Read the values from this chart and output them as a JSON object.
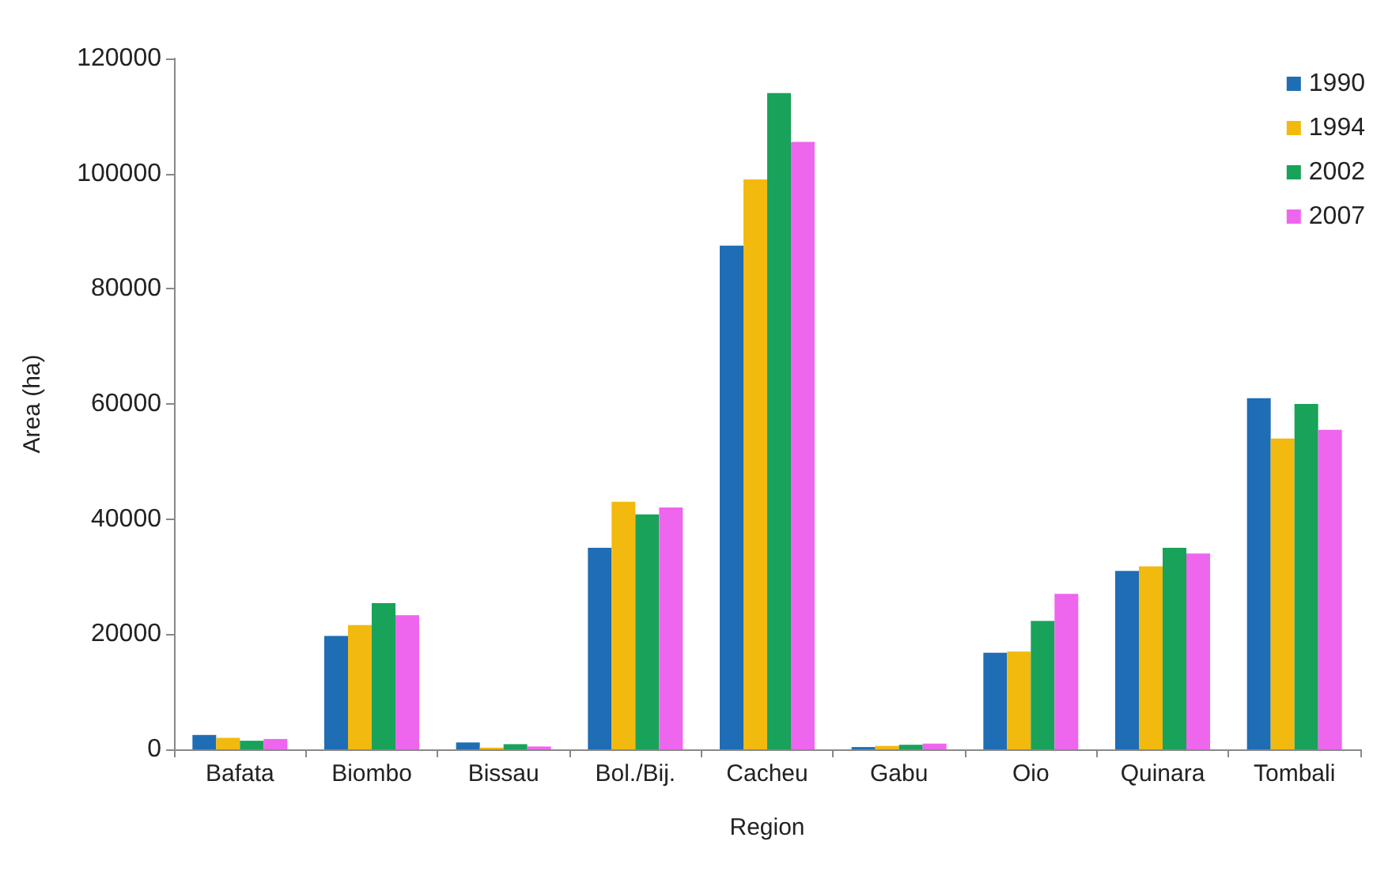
{
  "chart_data": {
    "type": "bar",
    "xlabel": "Region",
    "ylabel": "Area (ha)",
    "categories": [
      "Bafata",
      "Biombo",
      "Bissau",
      "Bol./Bij.",
      "Cacheu",
      "Gabu",
      "Oio",
      "Quinara",
      "Tombali"
    ],
    "series": [
      {
        "name": "1990",
        "color": "#1f6db5",
        "values": [
          2500,
          19700,
          1200,
          35000,
          87500,
          400,
          16800,
          31000,
          61000
        ]
      },
      {
        "name": "1994",
        "color": "#f2b90f",
        "values": [
          2000,
          21600,
          300,
          43000,
          99000,
          600,
          17000,
          31800,
          54000
        ]
      },
      {
        "name": "2002",
        "color": "#19a25a",
        "values": [
          1500,
          25400,
          900,
          40800,
          114000,
          800,
          22300,
          35000,
          60000
        ]
      },
      {
        "name": "2007",
        "color": "#ee66ee",
        "values": [
          1800,
          23300,
          500,
          42000,
          105500,
          1000,
          27000,
          34000,
          55500
        ]
      }
    ],
    "ylim": [
      0,
      120000
    ],
    "yticks": [
      0,
      20000,
      40000,
      60000,
      80000,
      100000,
      120000
    ],
    "grid": false,
    "legend": "top right"
  }
}
